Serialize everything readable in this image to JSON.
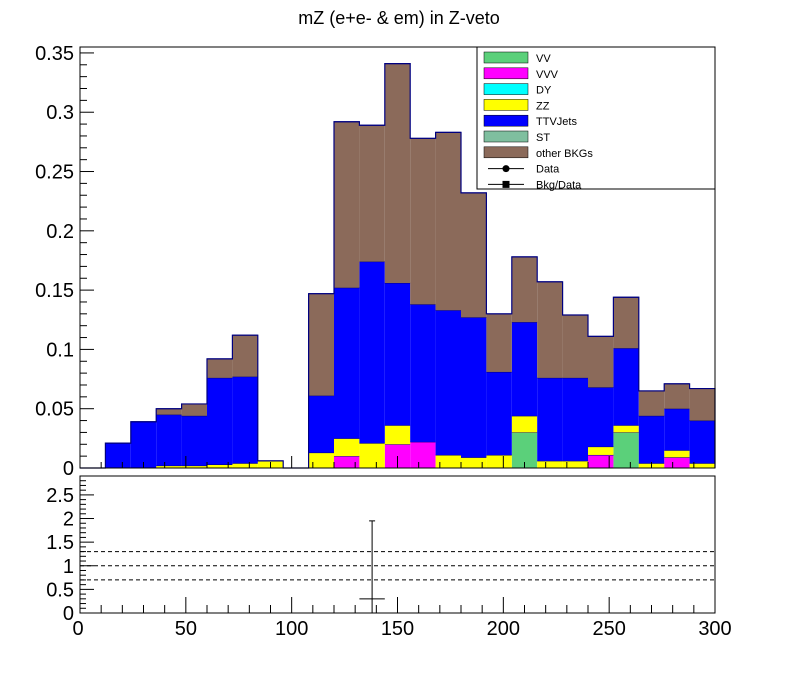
{
  "chart_data": [
    {
      "type": "bar",
      "stacked": true,
      "title": "mZ (e+e- & em) in Z-veto",
      "xlabel": "",
      "ylabel": "",
      "xlim": [
        0,
        300
      ],
      "ylim": [
        0,
        0.355
      ],
      "bin_edges": [
        0,
        12,
        24,
        36,
        48,
        60,
        72,
        84,
        96,
        108,
        120,
        132,
        144,
        156,
        168,
        180,
        192,
        204,
        216,
        228,
        240,
        252,
        264,
        276,
        288,
        300
      ],
      "y_ticks": [
        "0",
        "0.05",
        "0.1",
        "0.15",
        "0.2",
        "0.25",
        "0.3",
        "0.35"
      ],
      "y_tick_values": [
        0,
        0.05,
        0.1,
        0.15,
        0.2,
        0.25,
        0.3,
        0.35
      ],
      "legend_position": "top-right",
      "series": [
        {
          "name": "VV",
          "color": "#5bd07a",
          "values": [
            0,
            0,
            0,
            0,
            0,
            0,
            0,
            0,
            0,
            0,
            0,
            0,
            0,
            0,
            0,
            0,
            0,
            0.03,
            0,
            0,
            0,
            0.03,
            0,
            0,
            0
          ]
        },
        {
          "name": "VVV",
          "color": "#ff00ff",
          "values": [
            0,
            0,
            0,
            0,
            0,
            0,
            0,
            0,
            0,
            0,
            0.01,
            0,
            0.02,
            0.022,
            0,
            0,
            0,
            0,
            0,
            0,
            0.011,
            0,
            0,
            0.009,
            0
          ]
        },
        {
          "name": "DY",
          "color": "#00ffff",
          "values": [
            0,
            0,
            0,
            0,
            0,
            0,
            0,
            0,
            0,
            0,
            0,
            0,
            0,
            0,
            0,
            0,
            0,
            0,
            0,
            0,
            0,
            0,
            0,
            0,
            0
          ]
        },
        {
          "name": "ZZ",
          "color": "#ffff00",
          "values": [
            0,
            0,
            0,
            0.002,
            0.002,
            0.003,
            0.004,
            0.006,
            0,
            0.013,
            0.015,
            0.021,
            0.016,
            0,
            0.011,
            0.009,
            0.011,
            0.014,
            0.006,
            0.006,
            0.007,
            0.006,
            0.004,
            0.006,
            0.004
          ]
        },
        {
          "name": "TTVJets",
          "color": "#0000ff",
          "values": [
            0,
            0.021,
            0.039,
            0.043,
            0.042,
            0.073,
            0.073,
            0,
            0,
            0.048,
            0.127,
            0.153,
            0.12,
            0.116,
            0.122,
            0.118,
            0.07,
            0.079,
            0.07,
            0.07,
            0.05,
            0.065,
            0.04,
            0.035,
            0.036
          ]
        },
        {
          "name": "ST",
          "color": "#7fbf9f",
          "values": [
            0,
            0,
            0,
            0,
            0,
            0,
            0,
            0,
            0,
            0,
            0,
            0,
            0,
            0,
            0,
            0,
            0,
            0,
            0,
            0,
            0,
            0,
            0,
            0,
            0
          ]
        },
        {
          "name": "other BKGs",
          "color": "#8b6a5a",
          "values": [
            0,
            0,
            0,
            0.005,
            0.01,
            0.016,
            0.035,
            0,
            0,
            0.086,
            0.14,
            0.115,
            0.185,
            0.14,
            0.15,
            0.105,
            0.049,
            0.055,
            0.081,
            0.053,
            0.043,
            0.043,
            0.021,
            0.021,
            0.027
          ]
        }
      ],
      "legend_markers": [
        {
          "name": "Data",
          "marker": "circle"
        },
        {
          "name": "Bkg/Data",
          "marker": "square"
        }
      ],
      "outline_color": "#000080"
    },
    {
      "type": "scatter",
      "title": "",
      "xlabel": "",
      "ylabel": "",
      "xlim": [
        0,
        300
      ],
      "ylim": [
        0,
        2.9
      ],
      "x_ticks": [
        "0",
        "50",
        "100",
        "150",
        "200",
        "250",
        "300"
      ],
      "x_tick_values": [
        0,
        50,
        100,
        150,
        200,
        250,
        300
      ],
      "y_ticks": [
        "0",
        "0.5",
        "1",
        "1.5",
        "2",
        "2.5"
      ],
      "y_tick_values": [
        0,
        0.5,
        1,
        1.5,
        2,
        2.5
      ],
      "reference_lines": [
        0.7,
        1.0,
        1.3
      ],
      "points": [
        {
          "x": 138,
          "y": 0.3,
          "xerr": 6,
          "ylow": 0,
          "yhigh": 1.95
        }
      ]
    }
  ]
}
